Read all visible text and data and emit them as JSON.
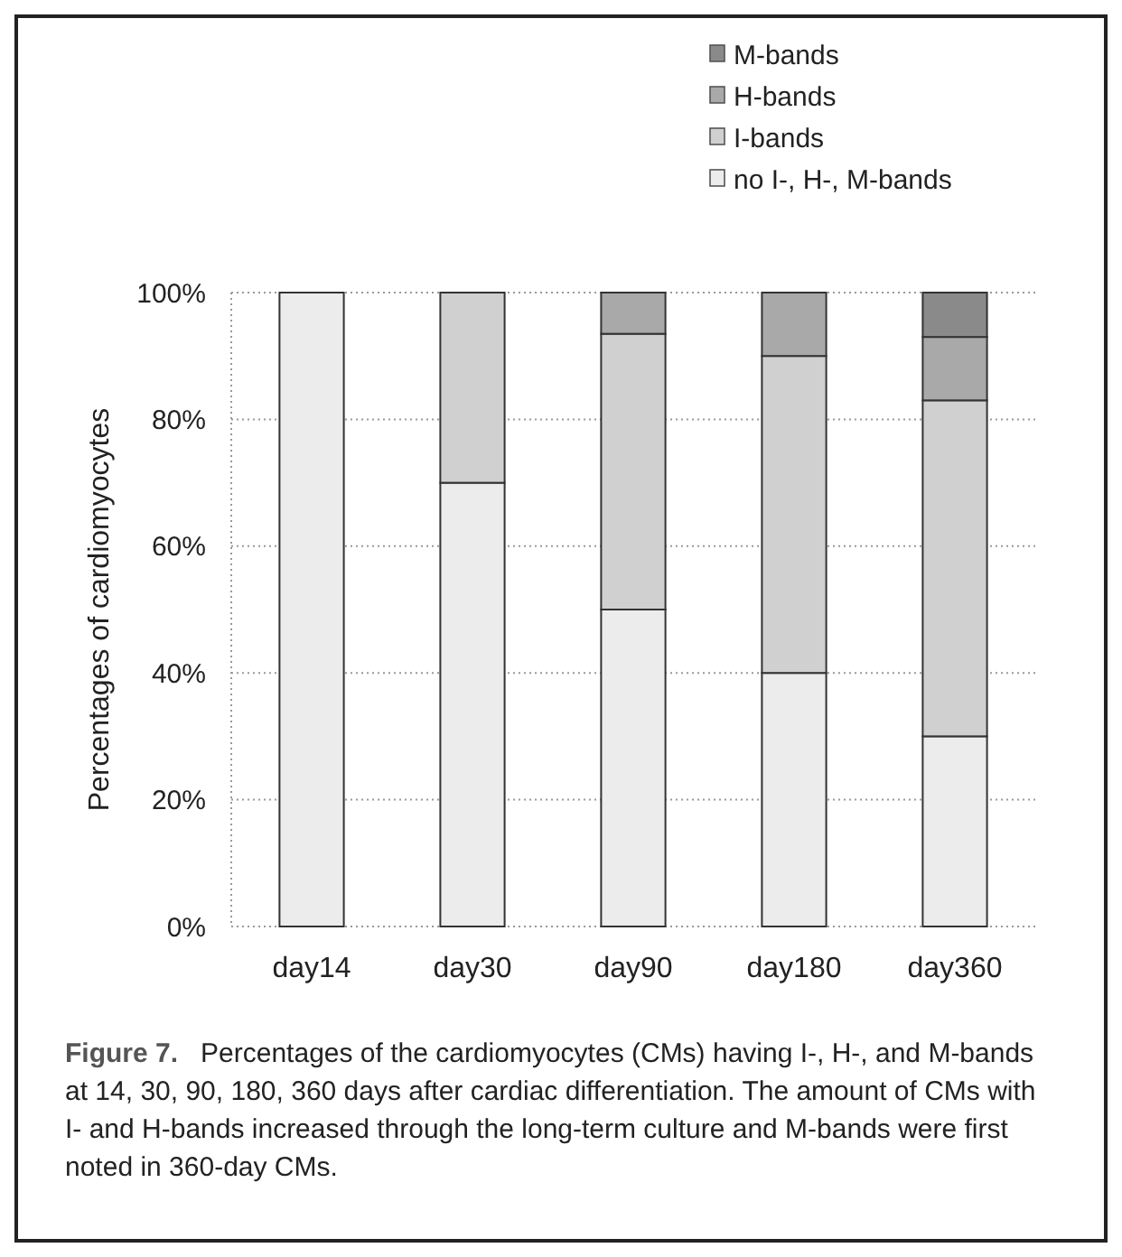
{
  "chart_data": {
    "type": "bar",
    "stacked": true,
    "ylabel": "Percentages of cardiomyocytes",
    "categories": [
      "day14",
      "day30",
      "day90",
      "day180",
      "day360"
    ],
    "series": [
      {
        "name": "no I-, H-, M-bands",
        "color": "#ececec",
        "values": [
          100,
          70,
          50,
          40,
          30
        ]
      },
      {
        "name": "I-bands",
        "color": "#d0d0d0",
        "values": [
          0,
          30,
          43.5,
          50,
          53
        ]
      },
      {
        "name": "H-bands",
        "color": "#a9a9a9",
        "values": [
          0,
          0,
          6.5,
          10,
          10
        ]
      },
      {
        "name": "M-bands",
        "color": "#8a8a8a",
        "values": [
          0,
          0,
          0,
          0,
          7
        ]
      }
    ],
    "ylim": [
      0,
      100
    ],
    "yticks": [
      {
        "value": 0,
        "label": "0%"
      },
      {
        "value": 20,
        "label": "20%"
      },
      {
        "value": 40,
        "label": "40%"
      },
      {
        "value": 60,
        "label": "60%"
      },
      {
        "value": 80,
        "label": "80%"
      },
      {
        "value": 100,
        "label": "100%"
      }
    ],
    "grid": "y",
    "legend": "top right",
    "annotations": [
      "Figure 7.",
      "Percentages of the cardiomyocytes (CMs) having I-, H-, and M-bands at 14, 30, 90, 180, 360 days after cardiac differentiation. The amount of CMs with I- and H-bands increased through the long-term culture and M-bands were first noted in 360-day CMs."
    ]
  }
}
